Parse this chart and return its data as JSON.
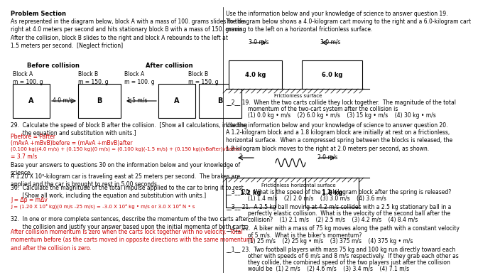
{
  "bg_color": "#ffffff",
  "problem_section_header": "Problem Section",
  "intro_text": "As represented in the diagram below, block A with a mass of 100. grams slides to the\nright at 4.0 meters per second and hits stationary block B with a mass of 150. grams.\nAfter the collision, block B slides to the right and block A rebounds to the left at\n1.5 meters per second.  [Neglect friction]",
  "before_collision_label": "Before collision",
  "after_collision_label": "After collision",
  "q29_text": "29.  Calculate the speed of block B after the collision.  [Show all calculations, including\n       the equation and substitution with units.]",
  "q29_answer_line1": "Pbefore = Pafter",
  "q29_answer_line2": "(mAvA +mBvB)before = (mAvA +mBvB)after",
  "q29_answer_line3": "(0.100 kg)(4.0 m/s) + (0.150 kg)(0 m/s) = (0.100 kg)(-1.5 m/s) + (0.150 kg)(vBafter)vBafter",
  "q29_answer_line4": "= 3.7 m/s",
  "q30_base_text": "Base your answers to questions 30 on the information below and your knowledge of\nscience.",
  "q30_car_text": "A 1.20 X 10³-kilogram car is traveling east at 25 meters per second.  The brakes are\napplied and the car is brought to rest in 5.00 seconds.",
  "q30_text": "30.  Calculate the magnitude of the total impulse applied to the car to bring it to rest.\n       [Show all work, including the equation and substitution with units.]",
  "q30_answer_line1": "J = Δp = mΔv",
  "q30_answer_line2": "J = (1.20 X 10³ kg)(0 m/s -25 m/s) = -3.0 X 10⁴ kg • m/s or 3.0 X 10⁴ N • s",
  "q32_text": "32.  In one or more complete sentences, describe the momentum of the two carts after\n       the collision and justify your answer based upon the initial momenta of both carts.",
  "q32_answer_red": "After collision momentum is zero when the carts lock together with no velocity.  Total\nmomentum before (as the carts moved in opposite directions with the same momentum)\nand after the collision is zero.",
  "right_intro": "Use the information below and your knowledge of science to answer question 19.",
  "right_diagram_text": "The diagram below shows a 4.0-kilogram cart moving to the right and a 6.0-kilogram cart\nmoving to the left on a horizontal frictionless surface.",
  "q19_text_line1": "__2__ 19.  When the two carts collide they lock together.  The magnitude of the total",
  "q19_text_line2": "             momentum of the two-cart system after the collision is",
  "q19_text_line3": "             (1) 0.0 kg • m/s    (2) 6.0 kg • m/s    (3) 15 kg • m/s    (4) 30 kg • m/s",
  "right_q20_intro": "Use the information below and your knowledge of science to answer question 20.",
  "q20_setup_text": "A 1.2-kilogram block and a 1.8 kilogram block are initially at rest on a frictionless,\nhorizontal surface.  When a compressed spring between the blocks is released, the\n1.8-kilogram block moves to the right at 2.0 meters per second, as shown.",
  "q20_text_line1": "__3__ 20.  What is the speed of the 1.2-kilogram block after the spring is released?",
  "q20_text_line2": "             (1) 1.4 m/s    (2) 2.0 m/s    (3) 3.0 m/s    (4) 3.6 m/s",
  "q21_text_line1": "__3__ 21.  A 2.5 kg ball moving at 4.2 m/s collides with a 2.5 kg stationary ball in a",
  "q21_text_line2": "             perfectly elastic collision.  What is the velocity of the second ball after the",
  "q21_text_line3": "             collision?    (1) 2.1 m/s    (2) 2.5 m/s    (3) 4.2 m/s    (4) 8.4 m/s",
  "q22_text_line1": "__4__ 22.  A biker with a mass of 75 kg moves along the path with a constant velocity",
  "q22_text_line2": "             of 5 m/s.  What is the biker's momentum?",
  "q22_text_line3": "             (1) 25 m/s    (2) 25 kg • m/s    (3) 375 m/s    (4) 375 kg • m/s",
  "q23_text_line1": "__1__ 23.  Two football players with mass 75 kg and 100 kg run directly toward each",
  "q23_text_line2": "             other with speeds of 6 m/s and 8 m/s respectively.  If they grab each other as",
  "q23_text_line3": "             they collide, the combined speed of the two players just after the collision",
  "q23_text_line4": "             would be  (1) 2 m/s    (2) 4.6 m/s    (3) 3.4 m/s    (4) 7.1 m/s"
}
